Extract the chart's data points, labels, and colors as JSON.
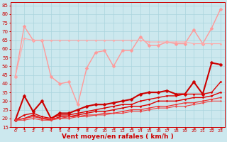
{
  "xlabel": "Vent moyen/en rafales ( km/h )",
  "bg_color": "#cce8ee",
  "grid_color": "#aad4dd",
  "xlim": [
    -0.5,
    23.5
  ],
  "ylim": [
    15,
    87
  ],
  "yticks": [
    15,
    20,
    25,
    30,
    35,
    40,
    45,
    50,
    55,
    60,
    65,
    70,
    75,
    80,
    85
  ],
  "xticks": [
    0,
    1,
    2,
    3,
    4,
    5,
    6,
    7,
    8,
    9,
    10,
    11,
    12,
    13,
    14,
    15,
    16,
    17,
    18,
    19,
    20,
    21,
    22,
    23
  ],
  "series": [
    {
      "x": [
        0,
        1,
        2,
        3,
        4,
        5,
        6,
        7,
        8,
        9,
        10,
        11,
        12,
        13,
        14,
        15,
        16,
        17,
        18,
        19,
        20,
        21,
        22,
        23
      ],
      "y": [
        44,
        73,
        65,
        65,
        44,
        40,
        41,
        28,
        49,
        58,
        59,
        50,
        59,
        59,
        67,
        62,
        62,
        64,
        63,
        63,
        71,
        63,
        72,
        83
      ],
      "color": "#ff9999",
      "marker": "D",
      "markersize": 2.5,
      "linewidth": 1.0
    },
    {
      "x": [
        0,
        1,
        2,
        3,
        4,
        5,
        6,
        7,
        8,
        9,
        10,
        11,
        12,
        13,
        14,
        15,
        16,
        17,
        18,
        19,
        20,
        21,
        22,
        23
      ],
      "y": [
        44,
        66,
        65,
        65,
        65,
        65,
        65,
        65,
        65,
        65,
        65,
        65,
        65,
        65,
        65,
        64,
        64,
        64,
        64,
        64,
        63,
        63,
        63,
        63
      ],
      "color": "#ffaaaa",
      "marker": "D",
      "markersize": 1.5,
      "linewidth": 0.8
    },
    {
      "x": [
        0,
        1,
        2,
        3,
        4,
        5,
        6,
        7,
        8,
        9,
        10,
        11,
        12,
        13,
        14,
        15,
        16,
        17,
        18,
        19,
        20,
        21,
        22,
        23
      ],
      "y": [
        19,
        33,
        24,
        30,
        20,
        23,
        23,
        25,
        27,
        28,
        28,
        29,
        30,
        31,
        34,
        35,
        35,
        36,
        34,
        34,
        41,
        34,
        52,
        51
      ],
      "color": "#cc0000",
      "marker": "D",
      "markersize": 2.5,
      "linewidth": 1.5
    },
    {
      "x": [
        0,
        1,
        2,
        3,
        4,
        5,
        6,
        7,
        8,
        9,
        10,
        11,
        12,
        13,
        14,
        15,
        16,
        17,
        18,
        19,
        20,
        21,
        22,
        23
      ],
      "y": [
        19,
        22,
        23,
        21,
        20,
        22,
        22,
        23,
        24,
        25,
        26,
        27,
        28,
        28,
        30,
        31,
        32,
        33,
        33,
        34,
        34,
        34,
        35,
        41
      ],
      "color": "#dd0000",
      "marker": "D",
      "markersize": 1.5,
      "linewidth": 1.0
    },
    {
      "x": [
        0,
        1,
        2,
        3,
        4,
        5,
        6,
        7,
        8,
        9,
        10,
        11,
        12,
        13,
        14,
        15,
        16,
        17,
        18,
        19,
        20,
        21,
        22,
        23
      ],
      "y": [
        19,
        20,
        22,
        20,
        19,
        21,
        21,
        22,
        23,
        24,
        24,
        25,
        26,
        27,
        27,
        28,
        30,
        30,
        30,
        31,
        32,
        32,
        33,
        35
      ],
      "color": "#dd0000",
      "marker": "D",
      "markersize": 1.5,
      "linewidth": 1.0
    },
    {
      "x": [
        0,
        1,
        2,
        3,
        4,
        5,
        6,
        7,
        8,
        9,
        10,
        11,
        12,
        13,
        14,
        15,
        16,
        17,
        18,
        19,
        20,
        21,
        22,
        23
      ],
      "y": [
        19,
        20,
        21,
        20,
        20,
        20,
        21,
        21,
        22,
        22,
        23,
        23,
        24,
        25,
        25,
        26,
        27,
        27,
        28,
        29,
        29,
        30,
        31,
        32
      ],
      "color": "#ee3333",
      "marker": "D",
      "markersize": 1.5,
      "linewidth": 0.9
    },
    {
      "x": [
        0,
        1,
        2,
        3,
        4,
        5,
        6,
        7,
        8,
        9,
        10,
        11,
        12,
        13,
        14,
        15,
        16,
        17,
        18,
        19,
        20,
        21,
        22,
        23
      ],
      "y": [
        19,
        19,
        20,
        19,
        19,
        20,
        20,
        21,
        21,
        22,
        22,
        23,
        23,
        24,
        24,
        25,
        26,
        26,
        27,
        27,
        28,
        29,
        30,
        30
      ],
      "color": "#ee4444",
      "marker": "D",
      "markersize": 1.2,
      "linewidth": 0.8
    }
  ],
  "wind_dir_arrows": [
    90,
    10,
    80,
    80,
    45,
    45,
    45,
    50,
    80,
    80,
    80,
    80,
    80,
    80,
    80,
    80,
    80,
    80,
    80,
    80,
    80,
    80,
    80,
    80
  ],
  "arrow_color": "#cc0000",
  "tick_color": "#cc0000",
  "spine_color": "#cc0000",
  "xlabel_color": "#cc0000",
  "xlabel_fontsize": 6.5,
  "ytick_fontsize": 5,
  "xtick_fontsize": 4.5
}
